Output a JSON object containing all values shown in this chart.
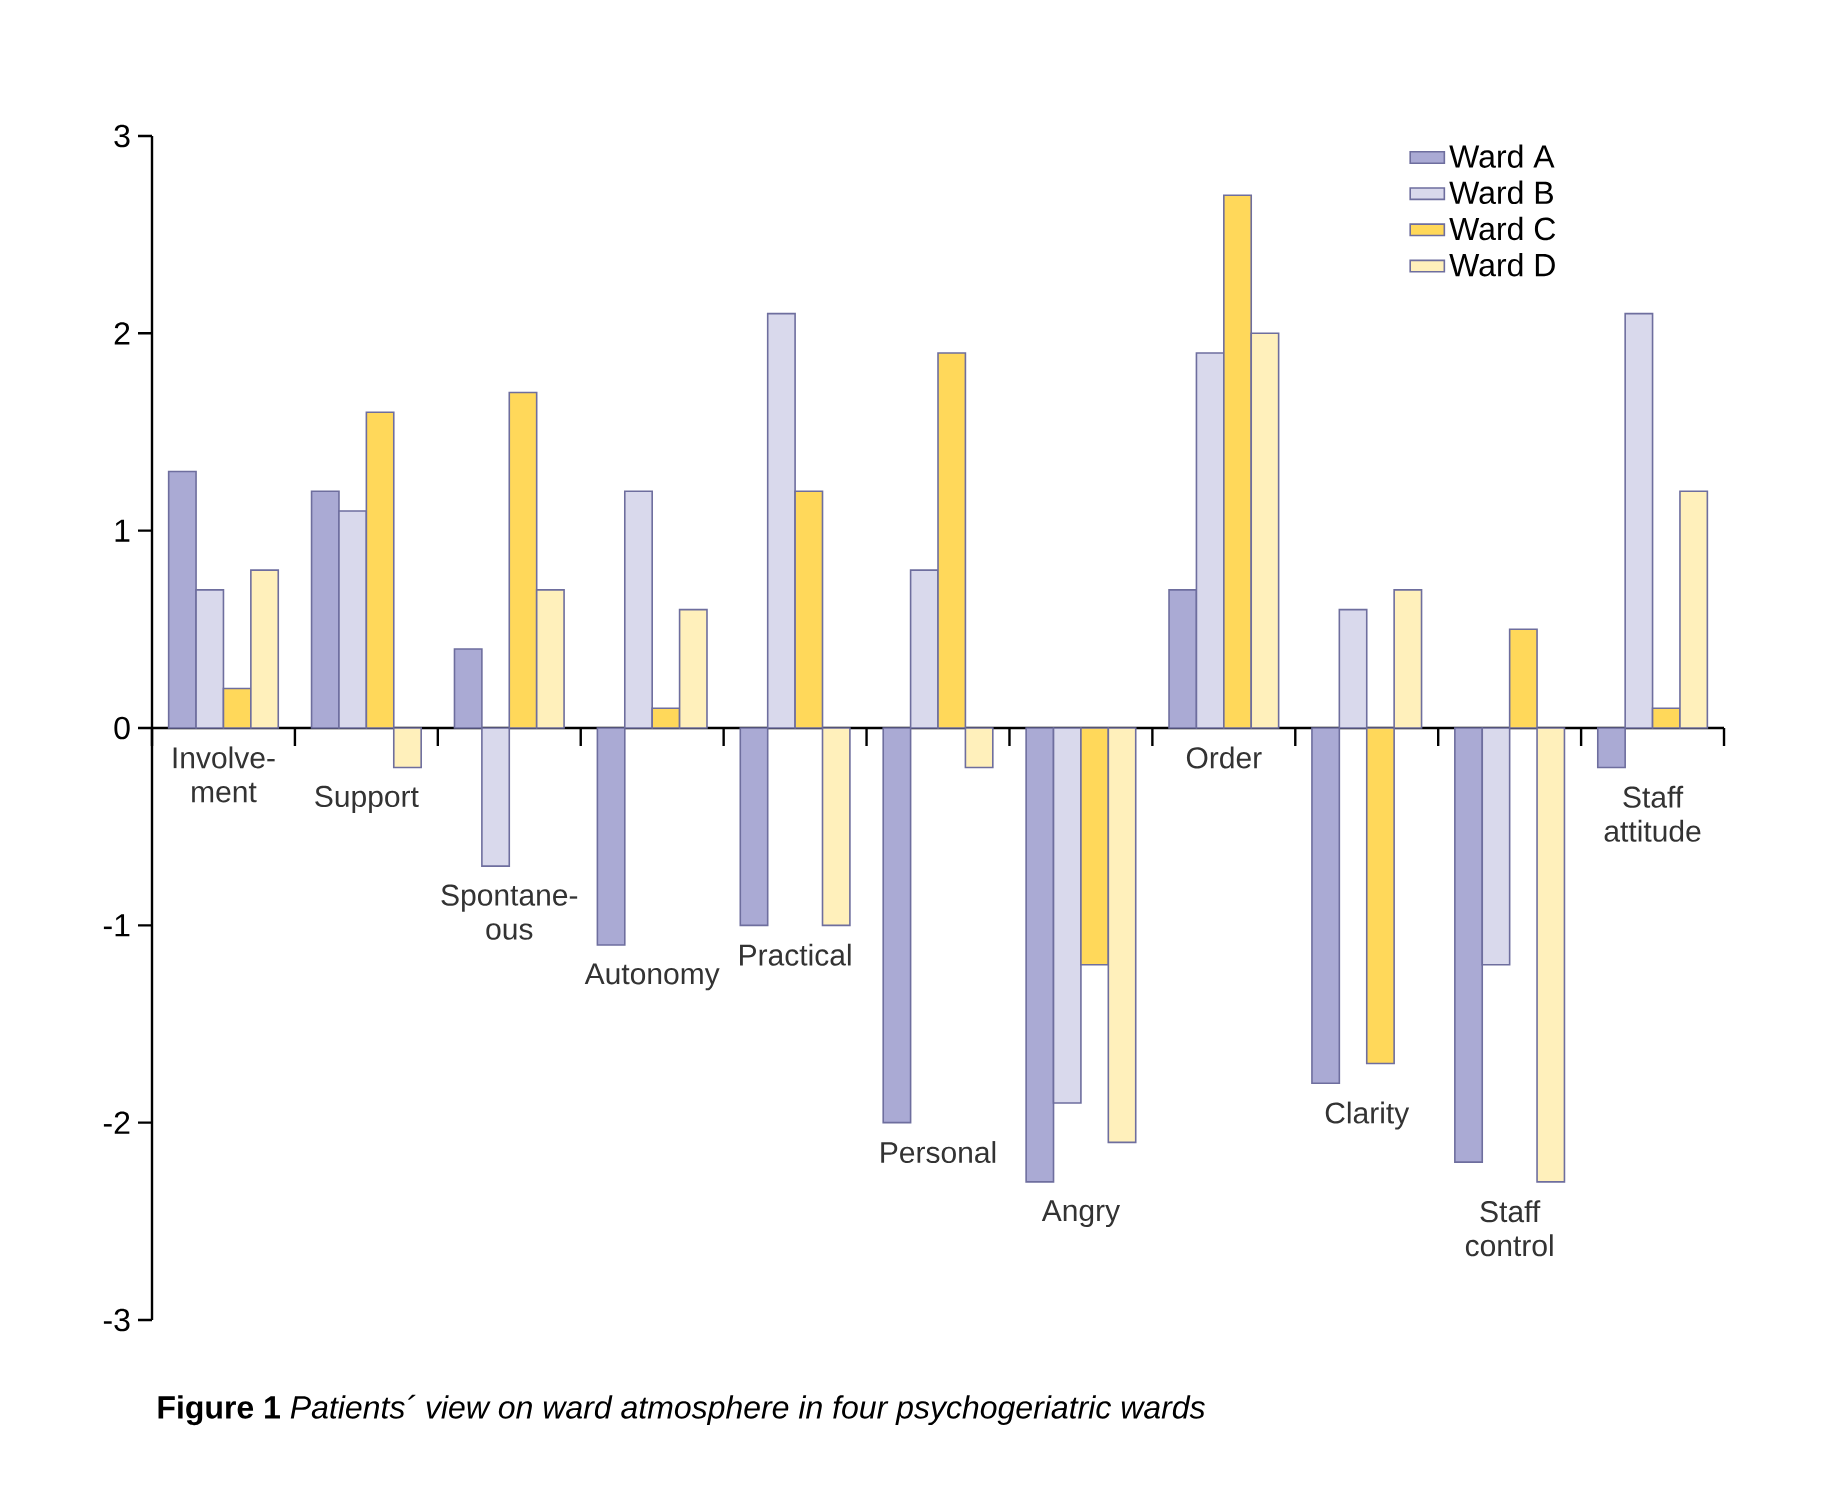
{
  "chart_data": {
    "type": "bar",
    "title": "**Figure 1** *Patients´ view on ward atmosphere in four psychogeriatric wards*",
    "categories": [
      "Involve-ment",
      "Support",
      "Spontane-ous",
      "Autonomy",
      "Practical",
      "Personal",
      "Angry",
      "Order",
      "Clarity",
      "Staff control",
      "Staff attitude"
    ],
    "series": [
      {
        "name": "Ward A",
        "color": "#aaaad4",
        "values": [
          1.3,
          1.2,
          0.4,
          -1.1,
          -1.0,
          -2.0,
          -2.3,
          0.7,
          -1.8,
          -2.2,
          -0.2
        ]
      },
      {
        "name": "Ward B",
        "color": "#d9d9ec",
        "values": [
          0.7,
          1.1,
          -0.7,
          1.2,
          2.1,
          0.8,
          -1.9,
          1.9,
          0.6,
          -1.2,
          2.1
        ]
      },
      {
        "name": "Ward C",
        "color": "#ffd85a",
        "values": [
          0.2,
          1.6,
          1.7,
          0.1,
          1.2,
          1.9,
          -1.2,
          2.7,
          -1.7,
          0.5,
          0.1
        ]
      },
      {
        "name": "Ward D",
        "color": "#fff0bb",
        "values": [
          0.8,
          -0.2,
          0.7,
          0.6,
          -1.0,
          -0.2,
          -2.1,
          2.0,
          0.7,
          -2.3,
          1.2
        ]
      }
    ],
    "ylim": [
      -3,
      3
    ],
    "yticks": [
      -3,
      -2,
      -1,
      0,
      1,
      2,
      3
    ],
    "legend": "top right",
    "grid": false
  }
}
